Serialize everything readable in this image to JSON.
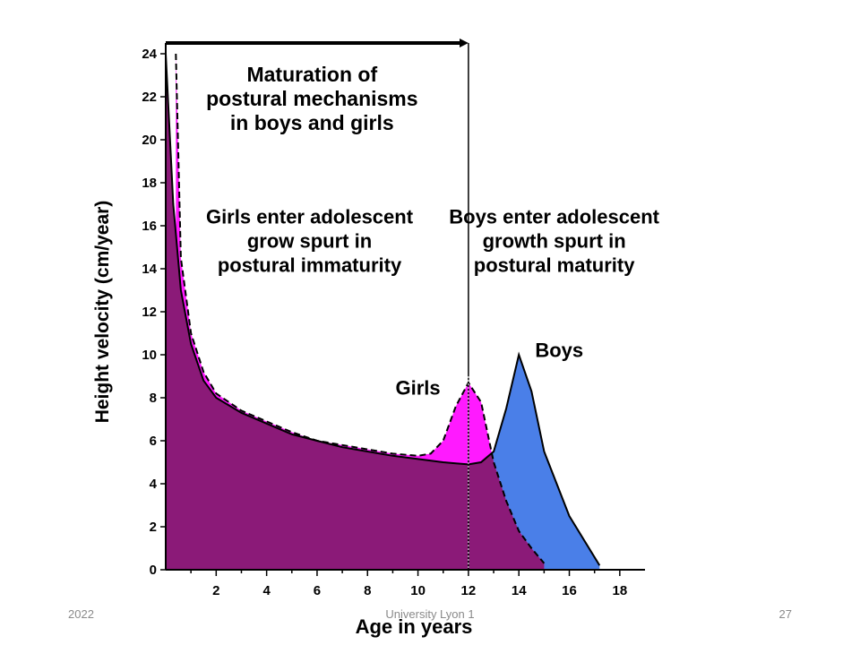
{
  "footer": {
    "date": "2022",
    "center": "University Lyon 1",
    "page": "27"
  },
  "chart_data": {
    "type": "area",
    "xlabel": "Age in years",
    "ylabel": "Height velocity (cm/year)",
    "xlim": [
      0,
      19
    ],
    "ylim": [
      0,
      24.5
    ],
    "xticks": [
      2,
      4,
      6,
      8,
      10,
      12,
      14,
      16,
      18
    ],
    "yticks": [
      0,
      2,
      4,
      6,
      8,
      10,
      12,
      14,
      16,
      18,
      20,
      22,
      24
    ],
    "grid": false,
    "annotations": {
      "maturation": [
        "Maturation of",
        "postural mechanisms",
        "in boys and girls"
      ],
      "girls_spurt": [
        "Girls enter adolescent",
        "grow spurt in",
        "postural immaturity"
      ],
      "boys_spurt": [
        "Boys enter adolescent",
        "growth spurt in",
        "postural maturity"
      ],
      "girls_label": "Girls",
      "boys_label": "Boys"
    },
    "maturation_arrow": {
      "from_x": 0,
      "to_x": 12,
      "y": 24.5
    },
    "series": [
      {
        "name": "Boys",
        "style": "solid",
        "x": [
          0,
          0.3,
          0.6,
          1,
          1.5,
          2,
          3,
          4,
          5,
          6,
          7,
          8,
          9,
          10,
          11,
          11.5,
          12,
          12.5,
          13,
          13.5,
          14,
          14.5,
          15,
          16,
          17.2
        ],
        "y": [
          24,
          17,
          13,
          10.5,
          8.8,
          8.0,
          7.3,
          6.8,
          6.3,
          6.0,
          5.7,
          5.5,
          5.3,
          5.15,
          5.0,
          4.95,
          4.9,
          5.0,
          5.5,
          7.5,
          10.0,
          8.3,
          5.5,
          2.5,
          0.2
        ]
      },
      {
        "name": "Girls",
        "style": "dashed",
        "x": [
          0.4,
          0.6,
          1,
          1.5,
          2,
          3,
          4,
          5,
          6,
          7,
          8,
          9,
          10,
          10.5,
          11,
          11.5,
          12,
          12.5,
          13,
          13.5,
          14,
          14.5,
          15
        ],
        "y": [
          24,
          14.5,
          11.0,
          9.2,
          8.2,
          7.4,
          6.9,
          6.4,
          6.0,
          5.8,
          5.6,
          5.4,
          5.3,
          5.4,
          6.0,
          7.6,
          8.7,
          7.8,
          5.0,
          3.2,
          1.8,
          1.0,
          0.3
        ]
      }
    ],
    "fills": {
      "common": "#8b1a78",
      "girls_extra": "#ff1aff",
      "boys_extra": "#4a7fe8"
    },
    "vertical_marker_x": 12
  }
}
